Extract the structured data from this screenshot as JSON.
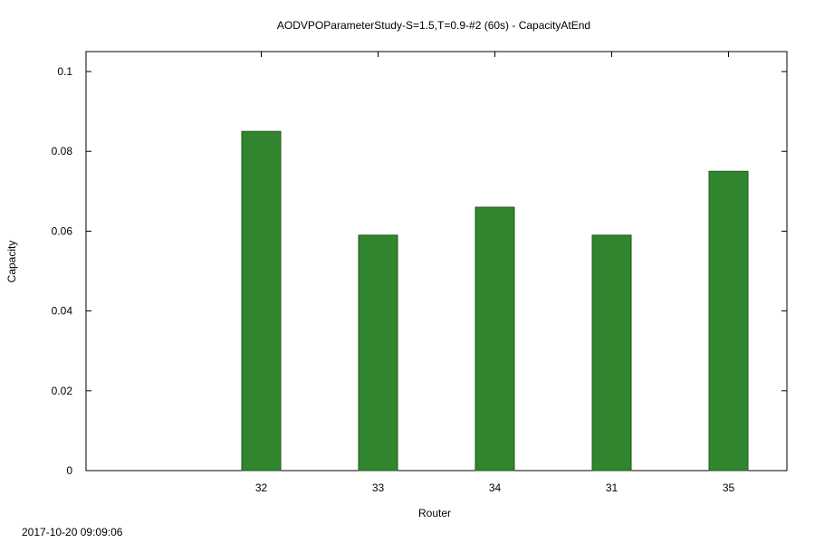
{
  "timestamp": "2017-10-20 09:09:06",
  "chart_data": {
    "type": "bar",
    "title": "AODVPOParameterStudy-S=1.5,T=0.9-#2 (60s) - CapacityAtEnd",
    "xlabel": "Router",
    "ylabel": "Capacity",
    "categories": [
      "32",
      "33",
      "34",
      "31",
      "35"
    ],
    "values": [
      0.085,
      0.059,
      0.066,
      0.059,
      0.075
    ],
    "ylim": [
      0,
      0.105
    ],
    "yticks": [
      0,
      0.02,
      0.04,
      0.06,
      0.08,
      0.1
    ],
    "ytick_labels": [
      "0",
      "0.02",
      "0.04",
      "0.06",
      "0.08",
      "0.1"
    ],
    "bar_color": "#31852f",
    "bar_edge_color": "#1c5a1a",
    "grid": false,
    "legend": false
  }
}
